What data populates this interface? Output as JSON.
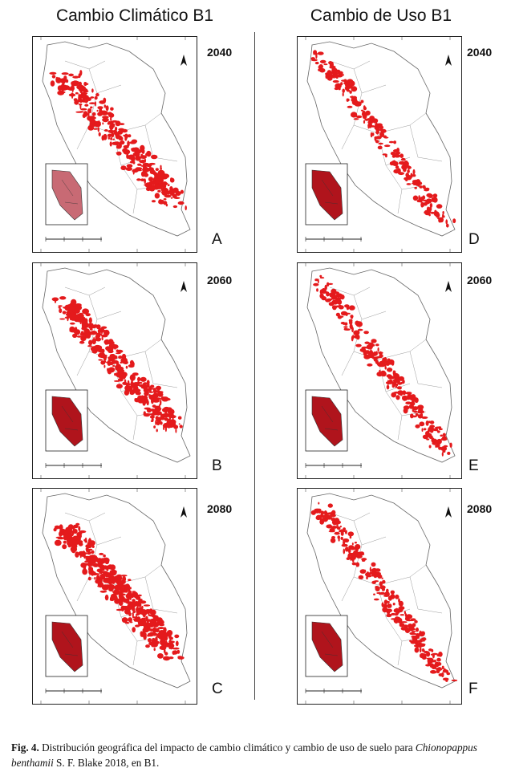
{
  "columns": {
    "left_title": "Cambio Climático B1",
    "right_title": "Cambio de Uso B1"
  },
  "panels": [
    {
      "letter": "A",
      "year": "2040",
      "column": "left"
    },
    {
      "letter": "B",
      "year": "2060",
      "column": "left"
    },
    {
      "letter": "C",
      "year": "2080",
      "column": "left"
    },
    {
      "letter": "D",
      "year": "2040",
      "column": "right"
    },
    {
      "letter": "E",
      "year": "2060",
      "column": "right"
    },
    {
      "letter": "F",
      "year": "2080",
      "column": "right"
    }
  ],
  "caption": {
    "fig_label": "Fig. 4.",
    "text_1": "Distribución geográfica del impacto de cambio climático y cambio de uso de suelo para",
    "species": "Chionopappus benthamii",
    "text_2": "S. F. Blake 2018, en B1."
  },
  "colors": {
    "distribution": "#e41a1c",
    "inset_fill_light": "#c86a74",
    "inset_fill_dark": "#b0141c",
    "border": "#222222"
  }
}
